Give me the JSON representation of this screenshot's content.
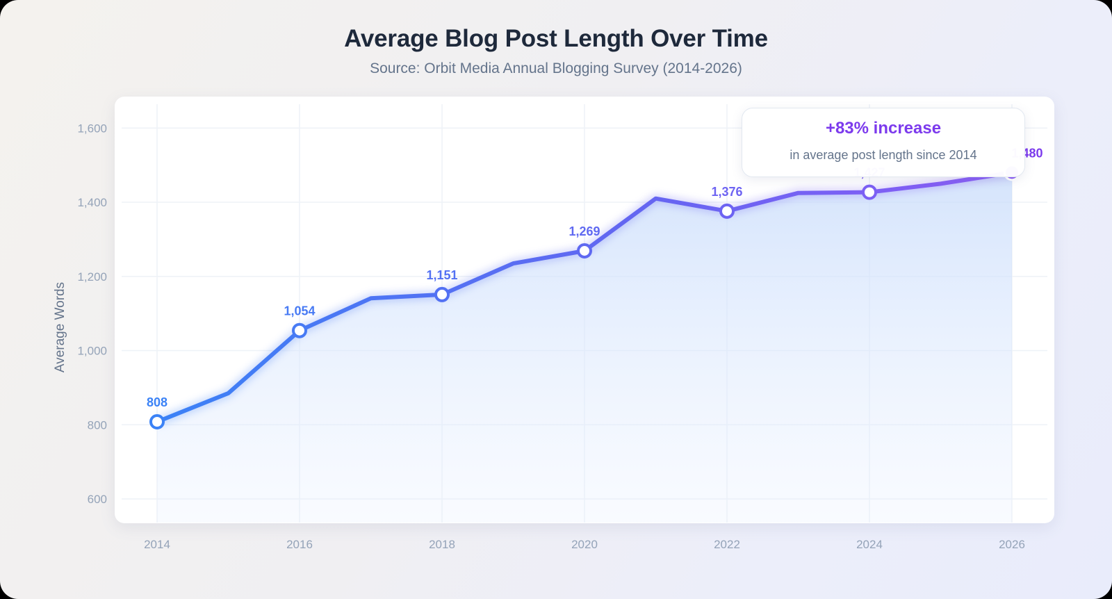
{
  "header": {
    "title": "Average Blog Post Length Over Time",
    "subtitle": "Source: Orbit Media Annual Blogging Survey (2014-2026)"
  },
  "callout": {
    "headline": "+83% increase",
    "detail": "in average post length since 2014"
  },
  "colors": {
    "line_start": "#3b82f6",
    "line_mid": "#6366f1",
    "line_end": "#8b5cf6",
    "label_end": "#7c3aed",
    "grid": "#eef2f7",
    "tick_text": "#94a3b8",
    "title": "#1e293b",
    "subtitle": "#64748b"
  },
  "chart_data": {
    "type": "line",
    "title": "Average Blog Post Length Over Time",
    "subtitle": "Source: Orbit Media Annual Blogging Survey (2014-2026)",
    "xlabel": "",
    "ylabel": "Average Words",
    "x": [
      2014,
      2015,
      2016,
      2017,
      2018,
      2019,
      2020,
      2021,
      2022,
      2023,
      2024,
      2025,
      2026
    ],
    "series": [
      {
        "name": "Average Words",
        "values": [
          808,
          885,
          1054,
          1141,
          1151,
          1235,
          1269,
          1410,
          1376,
          1425,
          1427,
          1450,
          1480
        ]
      }
    ],
    "labeled_points": [
      {
        "x": 2014,
        "label": "808"
      },
      {
        "x": 2016,
        "label": "1,054"
      },
      {
        "x": 2018,
        "label": "1,151"
      },
      {
        "x": 2020,
        "label": "1,269"
      },
      {
        "x": 2022,
        "label": "1,376"
      },
      {
        "x": 2024,
        "label": "1,427"
      },
      {
        "x": 2026,
        "label": "1,480"
      }
    ],
    "x_ticks": [
      "2014",
      "2016",
      "2018",
      "2020",
      "2022",
      "2024",
      "2026"
    ],
    "y_ticks": [
      "600",
      "800",
      "1,000",
      "1,200",
      "1,400",
      "1,600"
    ],
    "y_tick_values": [
      600,
      800,
      1000,
      1200,
      1400,
      1600
    ],
    "ylim": [
      580,
      1660
    ],
    "xlim": [
      2014,
      2026
    ],
    "grid": true,
    "area_fill": true,
    "annotation": "+83% increase in average post length since 2014"
  }
}
